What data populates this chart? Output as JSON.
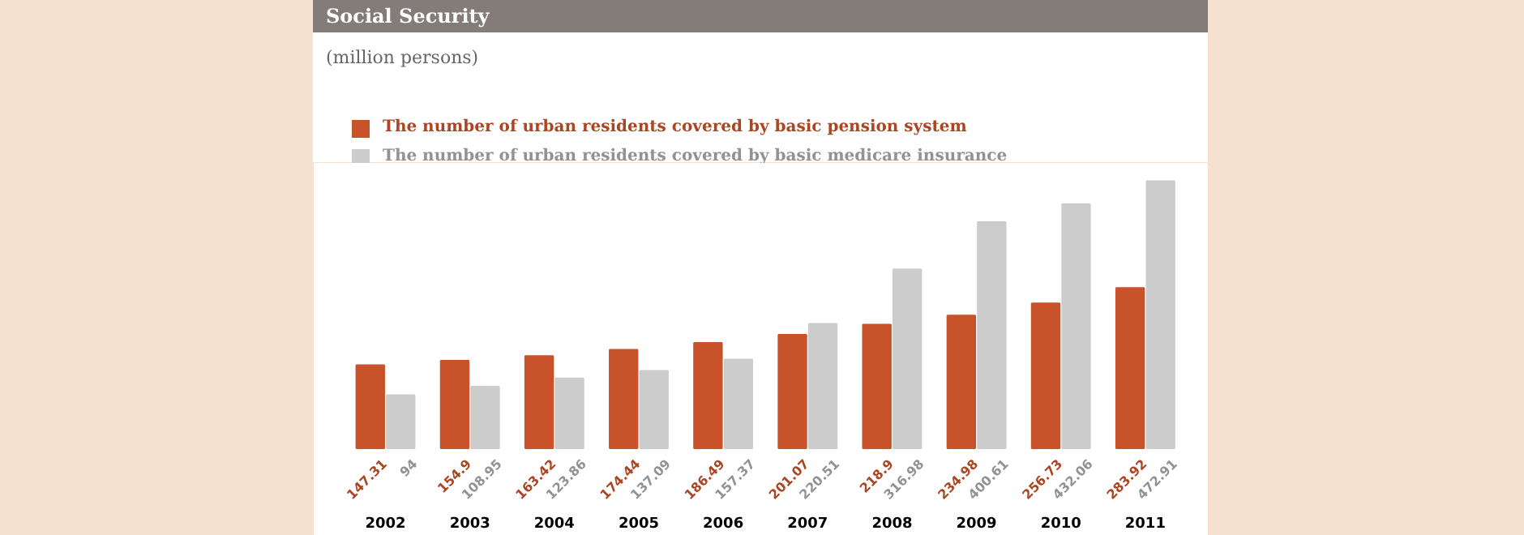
{
  "chart_data": {
    "type": "bar",
    "title": "Social Security",
    "subtitle": "(million persons)",
    "categories": [
      "2002",
      "2003",
      "2004",
      "2005",
      "2006",
      "2007",
      "2008",
      "2009",
      "2010",
      "2011"
    ],
    "series": [
      {
        "name": "The number of urban residents covered by basic pension system",
        "color": "#c8532a",
        "values": [
          147.31,
          154.9,
          163.42,
          174.44,
          186.49,
          201.07,
          218.9,
          234.98,
          256.73,
          283.92
        ]
      },
      {
        "name": "The number of urban residents covered by basic medicare insurance",
        "color": "#cccccc",
        "values": [
          94,
          108.95,
          123.86,
          137.09,
          157.37,
          220.51,
          316.98,
          400.61,
          432.06,
          472.91
        ]
      }
    ],
    "data_labels": true,
    "legend": "top left",
    "grid": false
  }
}
